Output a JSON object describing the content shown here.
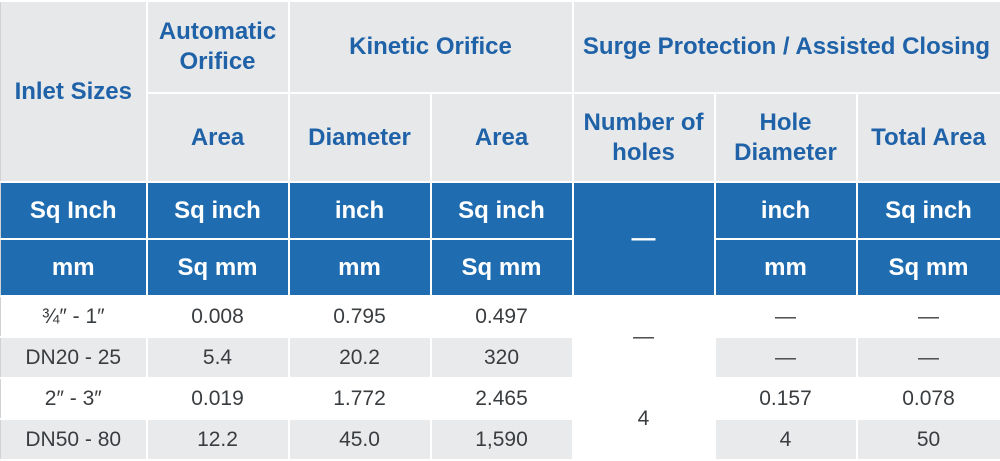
{
  "headers": {
    "inlet_sizes": "Inlet Sizes",
    "automatic_orifice": "Automatic Orifice",
    "kinetic_orifice": "Kinetic Orifice",
    "surge_protection": "Surge Protection / Assisted Closing",
    "area_auto": "Area",
    "diameter_kinetic": "Diameter",
    "area_kinetic": "Area",
    "number_of_holes": "Number of holes",
    "hole_diameter": "Hole Diameter",
    "total_area": "Total Area"
  },
  "units_imperial": {
    "inlet": "Sq Inch",
    "auto_area": "Sq inch",
    "kin_diameter": "inch",
    "kin_area": "Sq inch",
    "holes": "—",
    "hole_diameter": "inch",
    "total_area": "Sq inch"
  },
  "units_metric": {
    "inlet": "mm",
    "auto_area": "Sq mm",
    "kin_diameter": "mm",
    "kin_area": "Sq mm",
    "hole_diameter": "mm",
    "total_area": "Sq mm"
  },
  "rows": [
    {
      "inlet": "¾″ - 1″",
      "auto_area": "0.008",
      "kin_diameter": "0.795",
      "kin_area": "0.497",
      "holes": "—",
      "hole_diameter": "—",
      "total_area": "—"
    },
    {
      "inlet": "DN20 - 25",
      "auto_area": "5.4",
      "kin_diameter": "20.2",
      "kin_area": "320",
      "hole_diameter": "—",
      "total_area": "—"
    },
    {
      "inlet": "2″ - 3″",
      "auto_area": "0.019",
      "kin_diameter": "1.772",
      "kin_area": "2.465",
      "holes": "4",
      "hole_diameter": "0.157",
      "total_area": "0.078"
    },
    {
      "inlet": "DN50 - 80",
      "auto_area": "12.2",
      "kin_diameter": "45.0",
      "kin_area": "1,590",
      "hole_diameter": "4",
      "total_area": "50"
    }
  ],
  "colors": {
    "header_bg": "#e7e8ea",
    "header_text": "#1f62a8",
    "unit_bg": "#1f6db0",
    "unit_text": "#ffffff",
    "alt_row_bg": "#e9eaec"
  }
}
